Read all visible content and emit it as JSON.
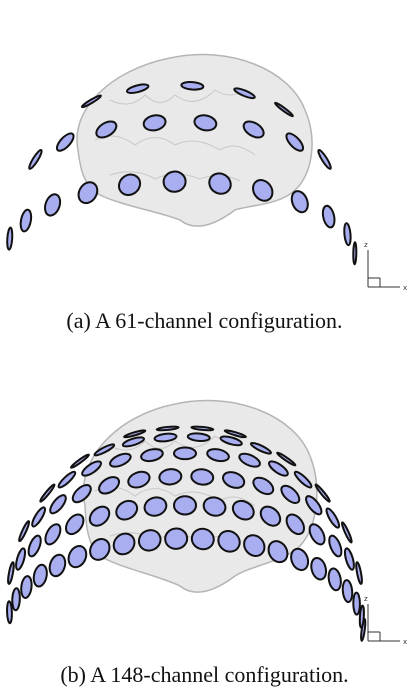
{
  "figures": [
    {
      "caption": "(a) A 61-channel configuration.",
      "axis_labels": [
        "z",
        "x"
      ]
    },
    {
      "caption": "(b) A 148-channel configuration.",
      "axis_labels": [
        "z",
        "x"
      ]
    }
  ]
}
